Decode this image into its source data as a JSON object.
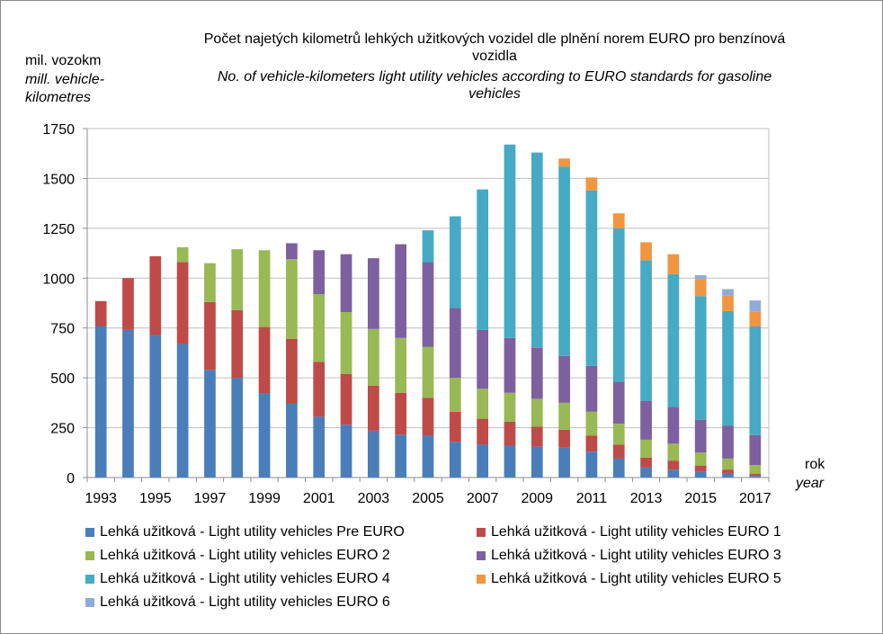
{
  "title_cz_line1": "Počet najetých kilometrů lehkých užitkových vozidel dle plnění norem EURO pro benzínová",
  "title_cz_line2": "vozidla",
  "title_en_line1": "No. of vehicle-kilometers  light utility vehicles according to EURO standards for gasoline",
  "title_en_line2": "vehicles",
  "ylabel_cz": "mil. vozokm",
  "ylabel_en_line1": "mill. vehicle-",
  "ylabel_en_line2": "kilometres",
  "xlabel_cz": "rok",
  "xlabel_en": "year",
  "colors": {
    "pre_euro": "#4a7ebb",
    "euro1": "#be4b48",
    "euro2": "#98b954",
    "euro3": "#7d60a0",
    "euro4": "#46aac5",
    "euro5": "#f29541",
    "euro6": "#8fabd8",
    "grid": "#bfbfbf",
    "frame": "#8c8c8c"
  },
  "chart_data": {
    "type": "bar",
    "stacked": true,
    "x": [
      1993,
      1994,
      1995,
      1996,
      1997,
      1998,
      1999,
      2000,
      2001,
      2002,
      2003,
      2004,
      2005,
      2006,
      2007,
      2008,
      2009,
      2010,
      2011,
      2012,
      2013,
      2014,
      2015,
      2016,
      2017
    ],
    "x_tick_labels": [
      "1993",
      "1995",
      "1997",
      "1999",
      "2001",
      "2003",
      "2005",
      "2007",
      "2009",
      "2011",
      "2013",
      "2015",
      "2017"
    ],
    "ylim": [
      0,
      1750
    ],
    "y_ticks": [
      0,
      250,
      500,
      750,
      1000,
      1250,
      1500,
      1750
    ],
    "grid": true,
    "legend_position": "bottom",
    "series": [
      {
        "name": "Lehká užitková - Light utility vehicles Pre EURO",
        "color_key": "pre_euro",
        "values": [
          760,
          740,
          715,
          670,
          540,
          500,
          420,
          370,
          305,
          265,
          235,
          215,
          210,
          180,
          165,
          160,
          155,
          150,
          130,
          95,
          50,
          40,
          30,
          20,
          8
        ]
      },
      {
        "name": "Lehká užitková - Light utility vehicles EURO 1",
        "color_key": "euro1",
        "values": [
          125,
          260,
          395,
          410,
          340,
          340,
          335,
          325,
          275,
          255,
          225,
          210,
          190,
          150,
          130,
          120,
          100,
          90,
          80,
          70,
          50,
          45,
          30,
          20,
          10
        ]
      },
      {
        "name": "Lehká užitková - Light utility vehicles EURO 2",
        "color_key": "euro2",
        "values": [
          0,
          0,
          0,
          75,
          195,
          305,
          385,
          400,
          340,
          310,
          285,
          275,
          255,
          170,
          150,
          145,
          140,
          135,
          120,
          105,
          90,
          85,
          65,
          55,
          45
        ]
      },
      {
        "name": "Lehká užitková - Light utility vehicles EURO 3",
        "color_key": "euro3",
        "values": [
          0,
          0,
          0,
          0,
          0,
          0,
          0,
          80,
          220,
          290,
          355,
          470,
          425,
          350,
          295,
          275,
          255,
          235,
          230,
          210,
          195,
          185,
          165,
          165,
          150
        ]
      },
      {
        "name": "Lehká užitková - Light utility vehicles EURO 4",
        "color_key": "euro4",
        "values": [
          0,
          0,
          0,
          0,
          0,
          0,
          0,
          0,
          0,
          0,
          0,
          0,
          160,
          460,
          705,
          970,
          980,
          950,
          880,
          770,
          705,
          665,
          620,
          575,
          545
        ]
      },
      {
        "name": "Lehká užitková - Light utility vehicles EURO 5",
        "color_key": "euro5",
        "values": [
          0,
          0,
          0,
          0,
          0,
          0,
          0,
          0,
          0,
          0,
          0,
          0,
          0,
          0,
          0,
          0,
          0,
          40,
          65,
          75,
          90,
          100,
          85,
          80,
          75
        ]
      },
      {
        "name": "Lehká užitková - Light utility vehicles EURO 6",
        "color_key": "euro6",
        "values": [
          0,
          0,
          0,
          0,
          0,
          0,
          0,
          0,
          0,
          0,
          0,
          0,
          0,
          0,
          0,
          0,
          0,
          0,
          0,
          0,
          0,
          0,
          20,
          30,
          55
        ]
      }
    ]
  }
}
